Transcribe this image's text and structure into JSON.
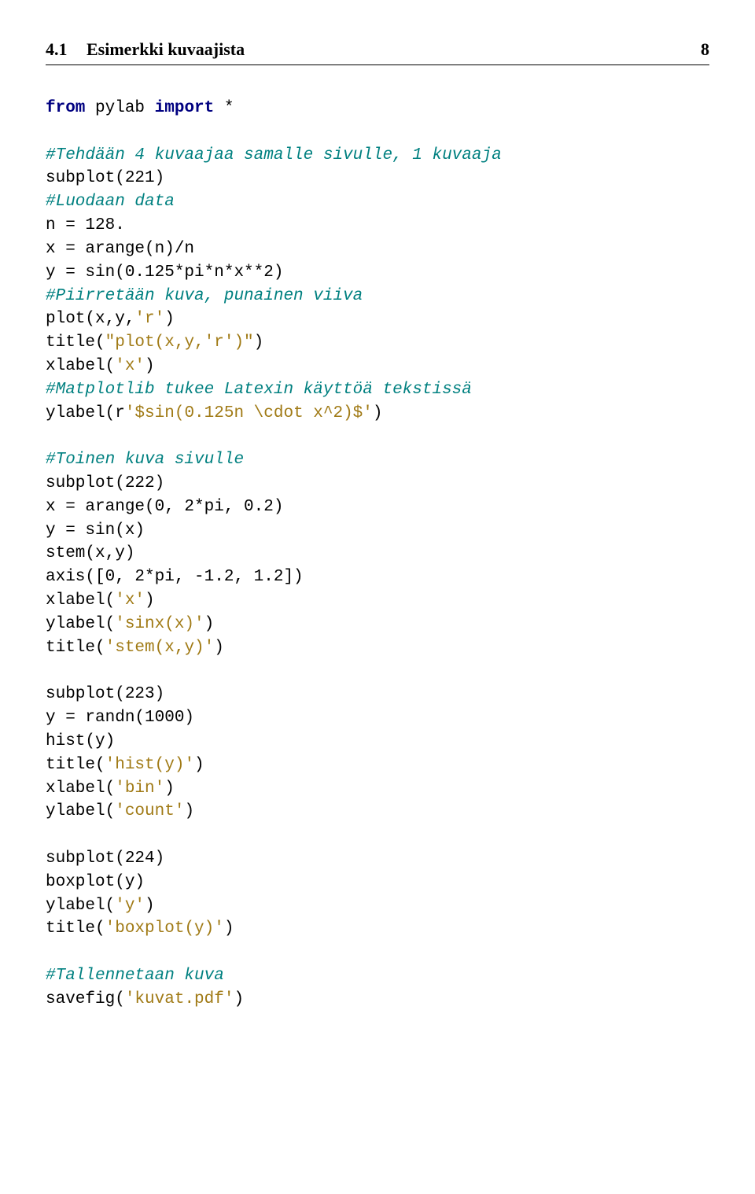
{
  "header": {
    "section": "4.1",
    "title": "Esimerkki kuvaajista",
    "page": "8"
  },
  "code": {
    "lines": [
      {
        "frags": [
          {
            "t": "from ",
            "c": "kw"
          },
          {
            "t": "pylab ",
            "c": ""
          },
          {
            "t": "import ",
            "c": "kw"
          },
          {
            "t": "*",
            "c": ""
          }
        ]
      },
      {
        "blank": true
      },
      {
        "frags": [
          {
            "t": "#Tehdään 4 kuvaajaa samalle sivulle, 1 kuvaaja",
            "c": "comment"
          }
        ]
      },
      {
        "frags": [
          {
            "t": "subplot(221)",
            "c": ""
          }
        ]
      },
      {
        "frags": [
          {
            "t": "#Luodaan data",
            "c": "comment"
          }
        ]
      },
      {
        "frags": [
          {
            "t": "n = 128.",
            "c": ""
          }
        ]
      },
      {
        "frags": [
          {
            "t": "x = arange(n)/n",
            "c": ""
          }
        ]
      },
      {
        "frags": [
          {
            "t": "y = sin(0.125*pi*n*x**2)",
            "c": ""
          }
        ]
      },
      {
        "frags": [
          {
            "t": "#Piirretään kuva, punainen viiva",
            "c": "comment"
          }
        ]
      },
      {
        "frags": [
          {
            "t": "plot(x,y,",
            "c": ""
          },
          {
            "t": "'r'",
            "c": "str"
          },
          {
            "t": ")",
            "c": ""
          }
        ]
      },
      {
        "frags": [
          {
            "t": "title(",
            "c": ""
          },
          {
            "t": "\"plot(x,y,'r')\"",
            "c": "str"
          },
          {
            "t": ")",
            "c": ""
          }
        ]
      },
      {
        "frags": [
          {
            "t": "xlabel(",
            "c": ""
          },
          {
            "t": "'x'",
            "c": "str"
          },
          {
            "t": ")",
            "c": ""
          }
        ]
      },
      {
        "frags": [
          {
            "t": "#Matplotlib tukee Latexin käyttöä tekstissä",
            "c": "comment"
          }
        ]
      },
      {
        "frags": [
          {
            "t": "ylabel(r",
            "c": ""
          },
          {
            "t": "'$sin(0.125n \\cdot x^2)$'",
            "c": "str"
          },
          {
            "t": ")",
            "c": ""
          }
        ]
      },
      {
        "blank": true
      },
      {
        "frags": [
          {
            "t": "#Toinen kuva sivulle",
            "c": "comment"
          }
        ]
      },
      {
        "frags": [
          {
            "t": "subplot(222)",
            "c": ""
          }
        ]
      },
      {
        "frags": [
          {
            "t": "x = arange(0, 2*pi, 0.2)",
            "c": ""
          }
        ]
      },
      {
        "frags": [
          {
            "t": "y = sin(x)",
            "c": ""
          }
        ]
      },
      {
        "frags": [
          {
            "t": "stem(x,y)",
            "c": ""
          }
        ]
      },
      {
        "frags": [
          {
            "t": "axis([0, 2*pi, -1.2, 1.2])",
            "c": ""
          }
        ]
      },
      {
        "frags": [
          {
            "t": "xlabel(",
            "c": ""
          },
          {
            "t": "'x'",
            "c": "str"
          },
          {
            "t": ")",
            "c": ""
          }
        ]
      },
      {
        "frags": [
          {
            "t": "ylabel(",
            "c": ""
          },
          {
            "t": "'sinx(x)'",
            "c": "str"
          },
          {
            "t": ")",
            "c": ""
          }
        ]
      },
      {
        "frags": [
          {
            "t": "title(",
            "c": ""
          },
          {
            "t": "'stem(x,y)'",
            "c": "str"
          },
          {
            "t": ")",
            "c": ""
          }
        ]
      },
      {
        "blank": true
      },
      {
        "frags": [
          {
            "t": "subplot(223)",
            "c": ""
          }
        ]
      },
      {
        "frags": [
          {
            "t": "y = randn(1000)",
            "c": ""
          }
        ]
      },
      {
        "frags": [
          {
            "t": "hist(y)",
            "c": ""
          }
        ]
      },
      {
        "frags": [
          {
            "t": "title(",
            "c": ""
          },
          {
            "t": "'hist(y)'",
            "c": "str"
          },
          {
            "t": ")",
            "c": ""
          }
        ]
      },
      {
        "frags": [
          {
            "t": "xlabel(",
            "c": ""
          },
          {
            "t": "'bin'",
            "c": "str"
          },
          {
            "t": ")",
            "c": ""
          }
        ]
      },
      {
        "frags": [
          {
            "t": "ylabel(",
            "c": ""
          },
          {
            "t": "'count'",
            "c": "str"
          },
          {
            "t": ")",
            "c": ""
          }
        ]
      },
      {
        "blank": true
      },
      {
        "frags": [
          {
            "t": "subplot(224)",
            "c": ""
          }
        ]
      },
      {
        "frags": [
          {
            "t": "boxplot(y)",
            "c": ""
          }
        ]
      },
      {
        "frags": [
          {
            "t": "ylabel(",
            "c": ""
          },
          {
            "t": "'y'",
            "c": "str"
          },
          {
            "t": ")",
            "c": ""
          }
        ]
      },
      {
        "frags": [
          {
            "t": "title(",
            "c": ""
          },
          {
            "t": "'boxplot(y)'",
            "c": "str"
          },
          {
            "t": ")",
            "c": ""
          }
        ]
      },
      {
        "blank": true
      },
      {
        "frags": [
          {
            "t": "#Tallennetaan kuva",
            "c": "comment"
          }
        ]
      },
      {
        "frags": [
          {
            "t": "savefig(",
            "c": ""
          },
          {
            "t": "'kuvat.pdf'",
            "c": "str"
          },
          {
            "t": ")",
            "c": ""
          }
        ]
      }
    ]
  }
}
